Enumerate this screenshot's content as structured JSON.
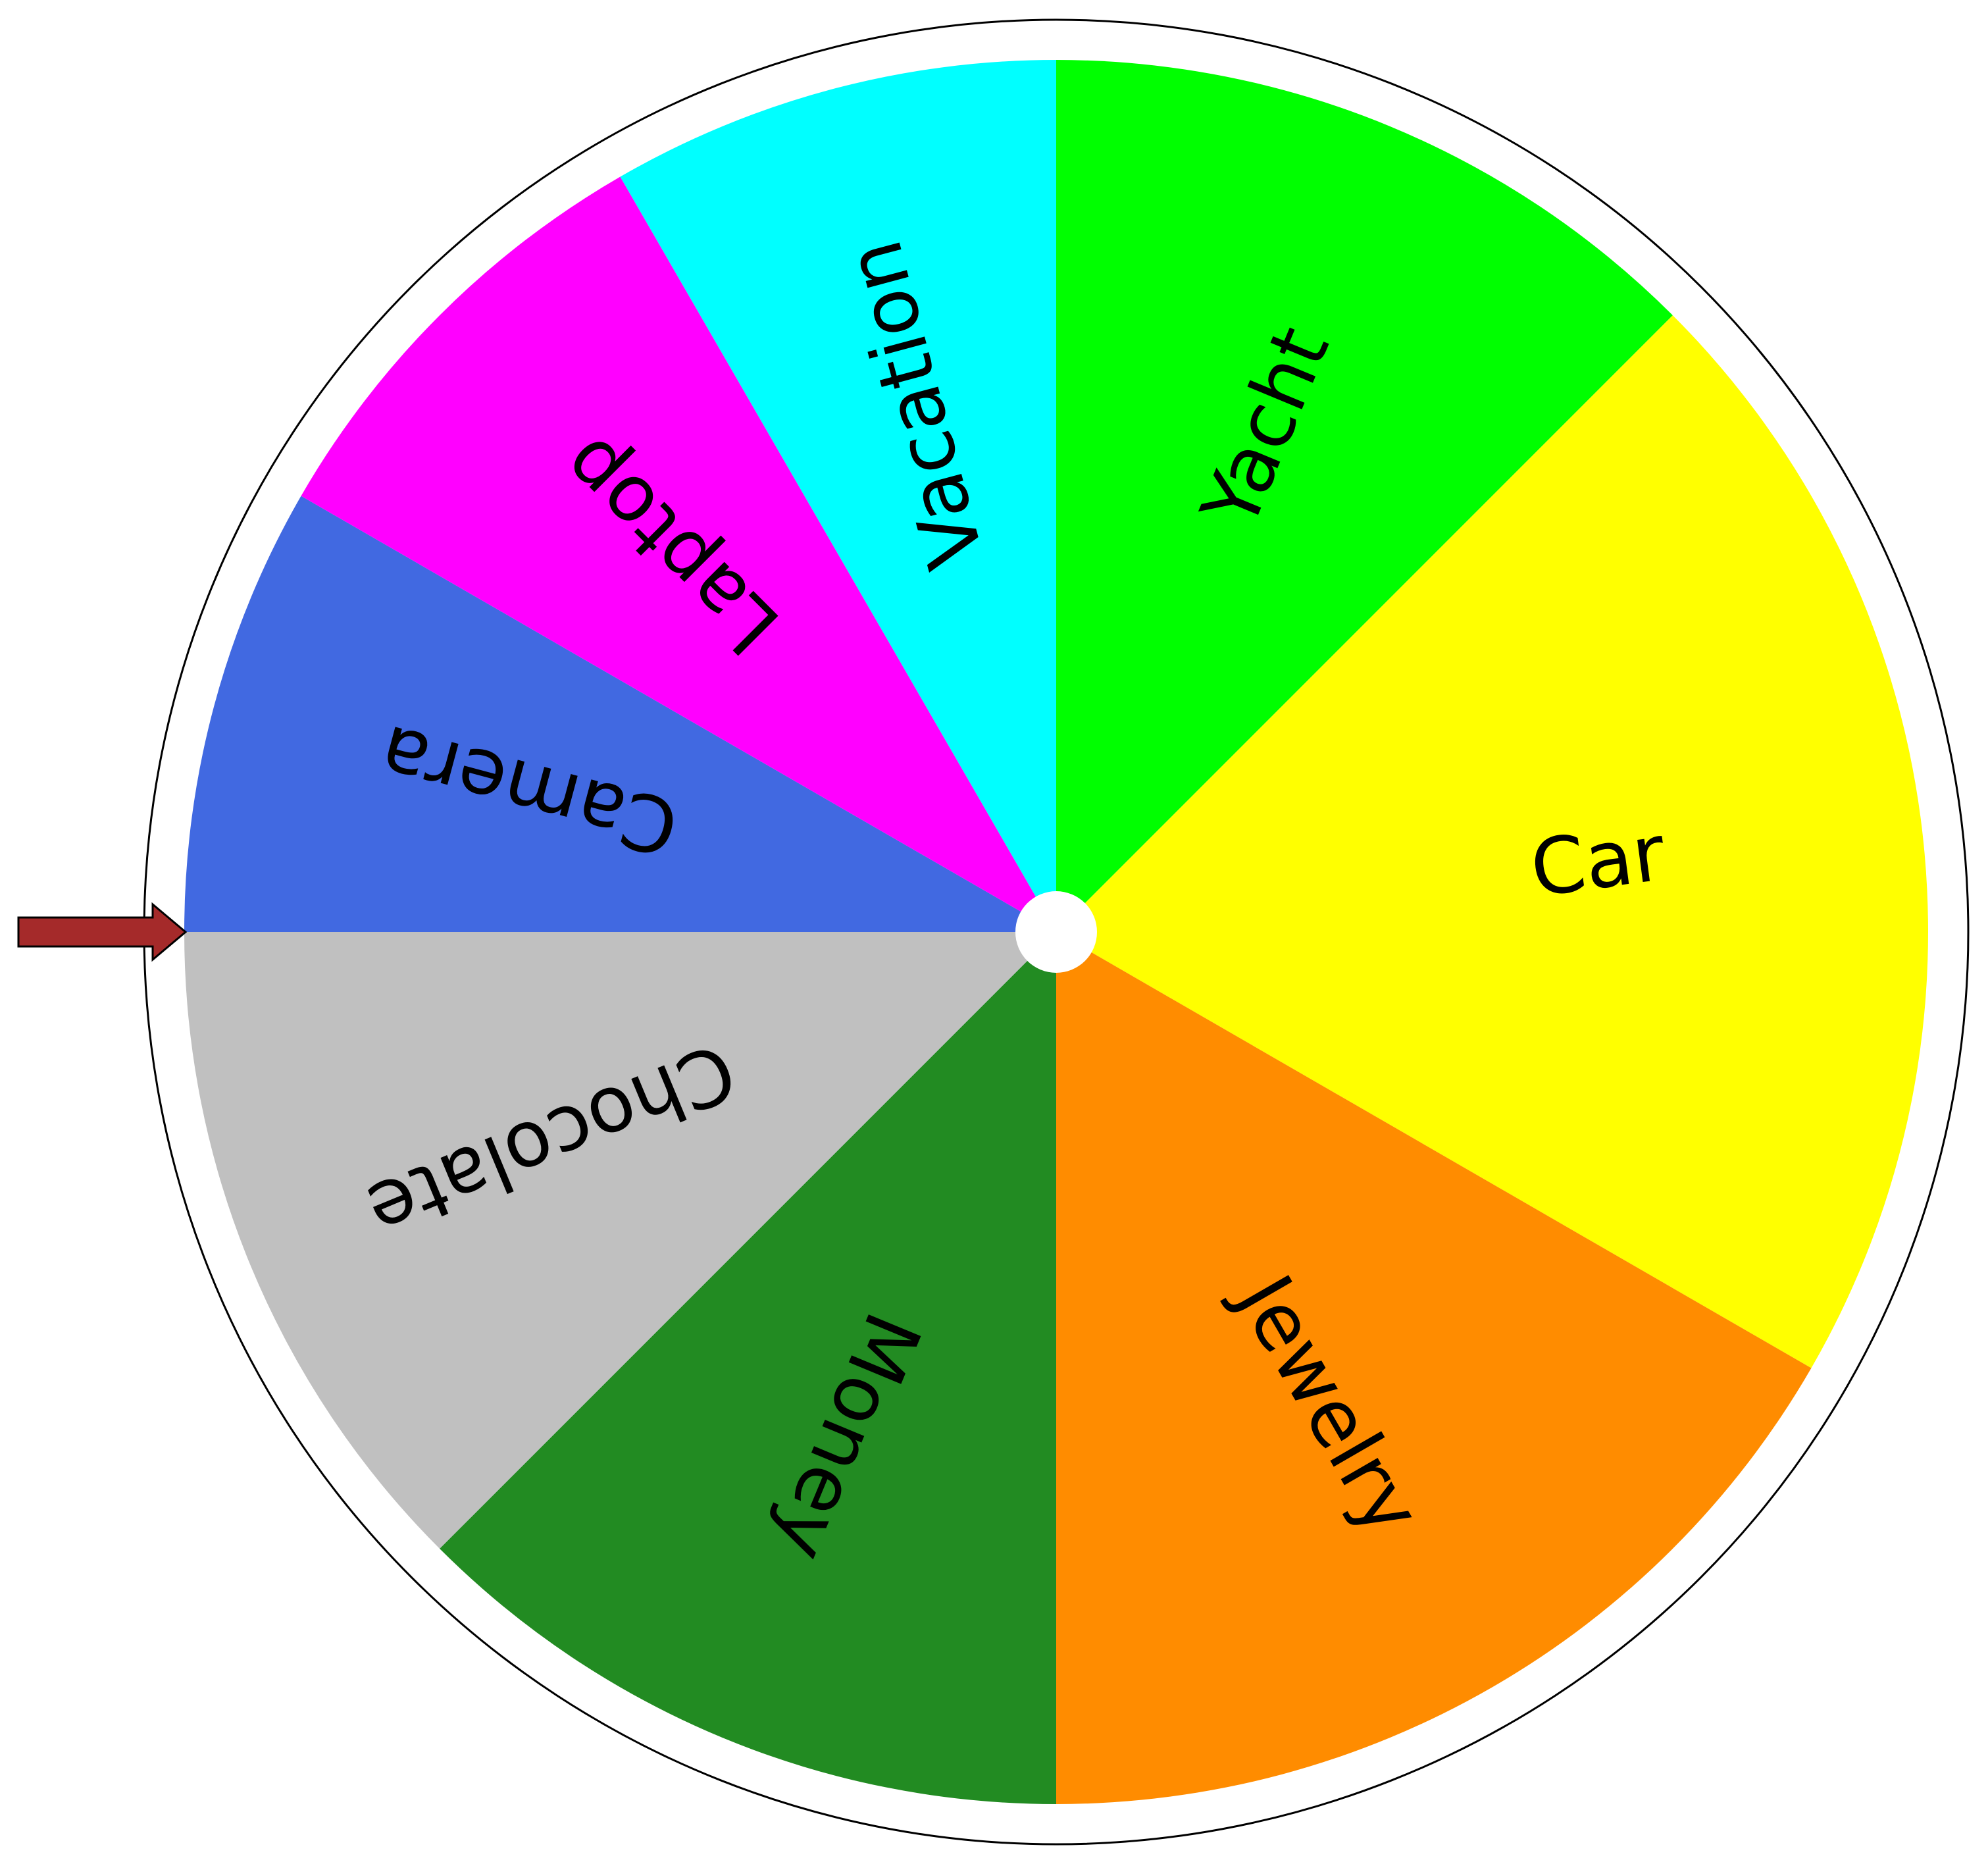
{
  "wheel": {
    "segments": [
      {
        "label": "Yacht",
        "color": "#00FF00",
        "start_deg": 0,
        "end_deg": 45
      },
      {
        "label": "Car",
        "color": "#FFFF00",
        "start_deg": 45,
        "end_deg": 120
      },
      {
        "label": "Jewelry",
        "color": "#FF8C00",
        "start_deg": 120,
        "end_deg": 180
      },
      {
        "label": "Money",
        "color": "#228B22",
        "start_deg": 180,
        "end_deg": 225
      },
      {
        "label": "Chocolate",
        "color": "#C0C0C0",
        "start_deg": 225,
        "end_deg": 270
      },
      {
        "label": "Camera",
        "color": "#4169E1",
        "start_deg": 270,
        "end_deg": 300
      },
      {
        "label": "Laptop",
        "color": "#FF00FF",
        "start_deg": 300,
        "end_deg": 330
      },
      {
        "label": "Vacation",
        "color": "#00FFFF",
        "start_deg": 330,
        "end_deg": 360
      }
    ],
    "pointer_color": "#A52A2A",
    "rim_color": "#000000",
    "hub_color": "#FFFFFF"
  }
}
